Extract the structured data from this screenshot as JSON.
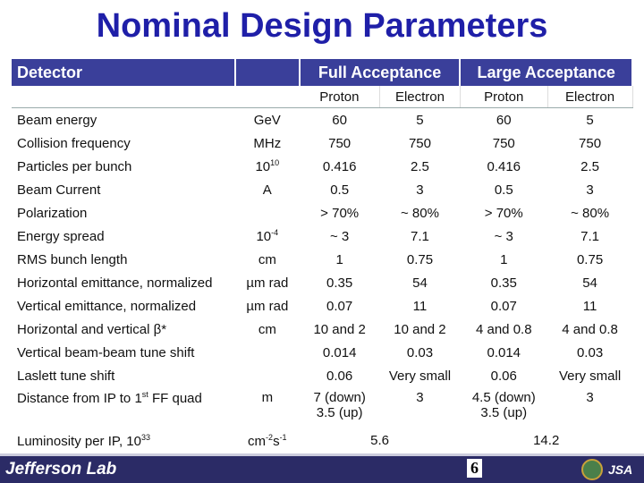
{
  "title": "Nominal Design Parameters",
  "header": {
    "detector": "Detector",
    "full_acceptance": "Full Acceptance",
    "large_acceptance": "Large Acceptance",
    "proton": "Proton",
    "electron": "Electron"
  },
  "rows": [
    {
      "label": "Beam energy",
      "unit": "GeV",
      "v": [
        "60",
        "5",
        "60",
        "5"
      ]
    },
    {
      "label": "Collision frequency",
      "unit": "MHz",
      "v": [
        "750",
        "750",
        "750",
        "750"
      ]
    },
    {
      "label": "Particles per bunch",
      "unit_base": "10",
      "unit_sup": "10",
      "v": [
        "0.416",
        "2.5",
        "0.416",
        "2.5"
      ]
    },
    {
      "label": "Beam Current",
      "unit": "A",
      "v": [
        "0.5",
        "3",
        "0.5",
        "3"
      ]
    },
    {
      "label": "Polarization",
      "unit": "",
      "v": [
        "> 70%",
        "~ 80%",
        "> 70%",
        "~ 80%"
      ]
    },
    {
      "label": "Energy spread",
      "unit_base": "10",
      "unit_sup": "-4",
      "v": [
        "~ 3",
        "7.1",
        "~ 3",
        "7.1"
      ]
    },
    {
      "label": "RMS bunch length",
      "unit": "cm",
      "v": [
        "1",
        "0.75",
        "1",
        "0.75"
      ]
    },
    {
      "label": "Horizontal emittance, normalized",
      "unit": "µm rad",
      "v": [
        "0.35",
        "54",
        "0.35",
        "54"
      ]
    },
    {
      "label": "Vertical emittance, normalized",
      "unit": "µm rad",
      "v": [
        "0.07",
        "11",
        "0.07",
        "11"
      ]
    },
    {
      "label": "Horizontal and vertical β*",
      "unit": "cm",
      "v": [
        "10 and 2",
        "10 and 2",
        "4 and 0.8",
        "4 and 0.8"
      ]
    },
    {
      "label": "Vertical beam-beam tune shift",
      "unit": "",
      "v": [
        "0.014",
        "0.03",
        "0.014",
        "0.03"
      ]
    },
    {
      "label": "Laslett tune shift",
      "unit": "",
      "v": [
        "0.06",
        "Very small",
        "0.06",
        "Very small"
      ]
    }
  ],
  "distance_row": {
    "label_pre": "Distance from IP to 1",
    "label_sup": "st",
    "label_post": " FF quad",
    "unit": "m",
    "v0_line1": "7 (down)",
    "v0_line2": "3.5 (up)",
    "v1": "3",
    "v2_line1": "4.5 (down)",
    "v2_line2": "3.5 (up)",
    "v3": "3"
  },
  "luminosity_row": {
    "label_pre": "Luminosity per IP, 10",
    "label_sup": "33",
    "unit_a": "cm",
    "unit_a_sup": "-2",
    "unit_b": "s",
    "unit_b_sup": "-1",
    "full": "5.6",
    "large": "14.2"
  },
  "footer": {
    "logo": "Jefferson Lab",
    "page_number": "6",
    "badge": "JSA"
  },
  "colors": {
    "title": "#1f1fa8",
    "header_bg": "#3a3f9a",
    "footer_bg": "#2b2b66"
  }
}
